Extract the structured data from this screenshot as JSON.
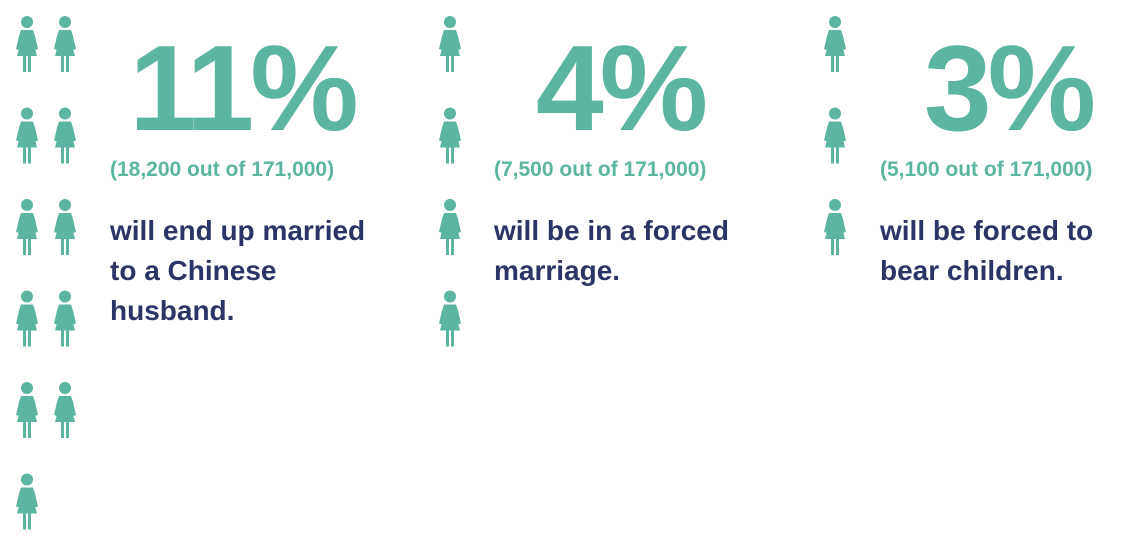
{
  "panels": [
    {
      "value": 11,
      "label": "11%",
      "detail": "(18,200 out of 171,000)",
      "lines": [
        "will end up married",
        "to a Chinese",
        "husband."
      ]
    },
    {
      "value": 4,
      "label": "4%",
      "detail": "(7,500 out of 171,000)",
      "lines": [
        "will be in a forced",
        "marriage."
      ]
    },
    {
      "value": 3,
      "label": "3%",
      "detail": "(5,100 out of 171,000)",
      "lines": [
        "will be forced to",
        "bear children."
      ]
    }
  ]
}
